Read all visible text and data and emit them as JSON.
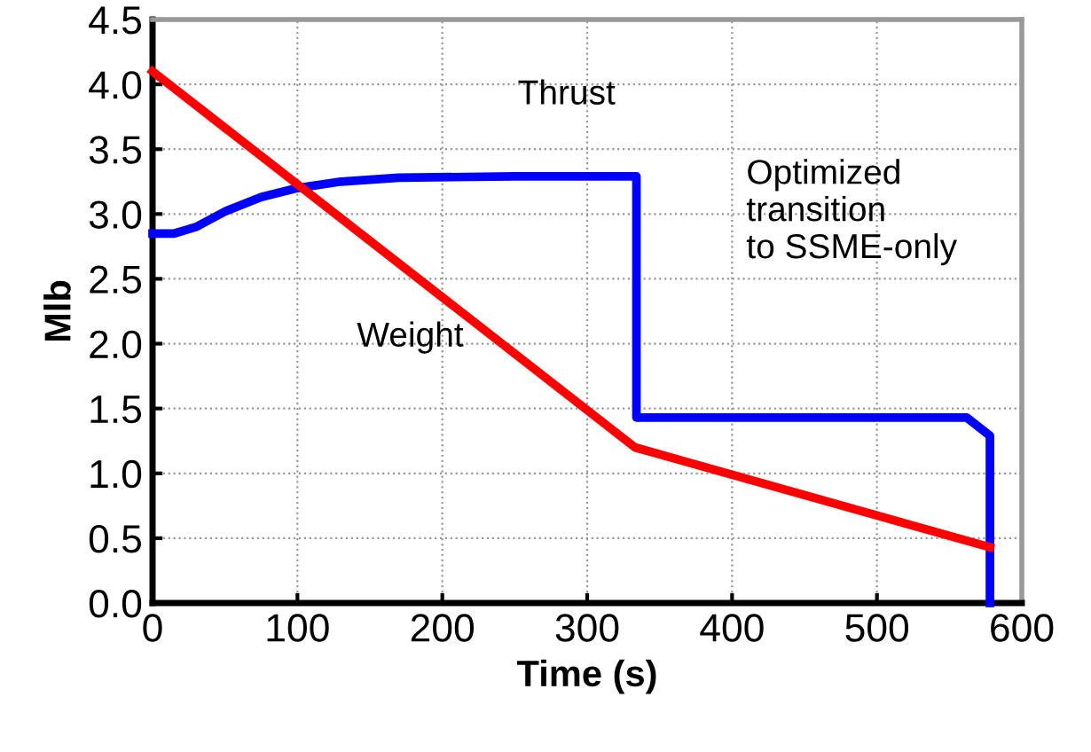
{
  "chart_data": {
    "type": "line",
    "xlabel": "Time (s)",
    "ylabel": "Mlb",
    "series": [
      {
        "name": "Thrust",
        "color": "#0000ff",
        "x": [
          0,
          15,
          30,
          50,
          75,
          100,
          130,
          170,
          250,
          334,
          334,
          562,
          578,
          578
        ],
        "values": [
          2.85,
          2.85,
          2.9,
          3.02,
          3.13,
          3.2,
          3.25,
          3.28,
          3.29,
          3.29,
          1.43,
          1.43,
          1.29,
          0
        ]
      },
      {
        "name": "Weight",
        "color": "#ff0000",
        "x": [
          0,
          333,
          578
        ],
        "values": [
          4.1,
          1.2,
          0.43
        ]
      }
    ],
    "annotations": [
      "Optimized\ntransition\nto SSME-only"
    ],
    "xlim": [
      0,
      600
    ],
    "ylim": [
      0,
      4.5
    ],
    "xticks": [
      0,
      100,
      200,
      300,
      400,
      500,
      600
    ],
    "yticks": [
      {
        "value": 0,
        "label": "0.0"
      },
      {
        "value": 0.5,
        "label": "0.5"
      },
      {
        "value": 1,
        "label": "1.0"
      },
      {
        "value": 1.5,
        "label": "1.5"
      },
      {
        "value": 2,
        "label": "2.0"
      },
      {
        "value": 2.5,
        "label": "2.5"
      },
      {
        "value": 3,
        "label": "3.0"
      },
      {
        "value": 3.5,
        "label": "3.5"
      },
      {
        "value": 4,
        "label": "4.0"
      },
      {
        "value": 4.5,
        "label": "4.5"
      }
    ],
    "grid": true,
    "legend": false,
    "marker": "none",
    "line_style": "solid"
  }
}
